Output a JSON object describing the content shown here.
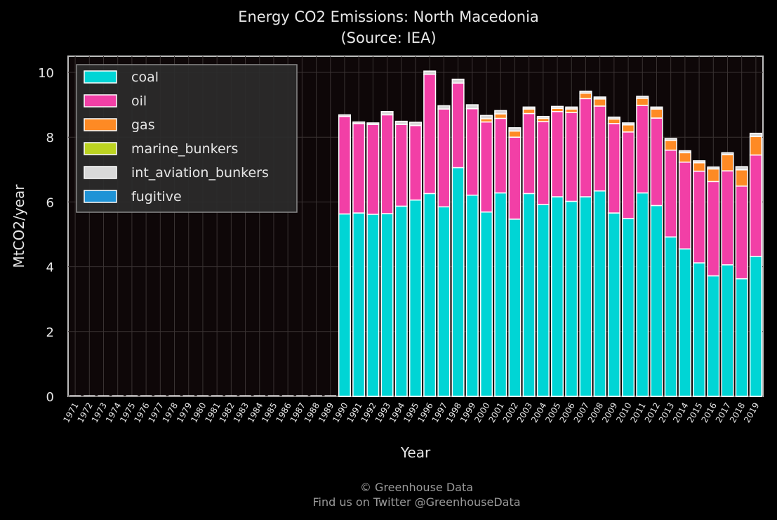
{
  "chart_data": {
    "type": "bar",
    "stacked": true,
    "title": "Energy CO2 Emissions: North Macedonia",
    "subtitle": "(Source: IEA)",
    "xlabel": "Year",
    "ylabel": "MtCO2/year",
    "ylim": [
      0,
      10.5
    ],
    "yticks": [
      0,
      2,
      4,
      6,
      8,
      10
    ],
    "grid": true,
    "legend_position": "top-left",
    "categories": [
      "1971",
      "1972",
      "1973",
      "1974",
      "1975",
      "1976",
      "1977",
      "1978",
      "1979",
      "1980",
      "1981",
      "1982",
      "1983",
      "1984",
      "1985",
      "1986",
      "1987",
      "1988",
      "1989",
      "1990",
      "1991",
      "1992",
      "1993",
      "1994",
      "1995",
      "1996",
      "1997",
      "1998",
      "1999",
      "2000",
      "2001",
      "2002",
      "2003",
      "2004",
      "2005",
      "2006",
      "2007",
      "2008",
      "2009",
      "2010",
      "2011",
      "2012",
      "2013",
      "2014",
      "2015",
      "2016",
      "2017",
      "2018",
      "2019"
    ],
    "series": [
      {
        "name": "coal",
        "color": "#00d5d5",
        "values": [
          0,
          0,
          0,
          0,
          0,
          0,
          0,
          0,
          0,
          0,
          0,
          0,
          0,
          0,
          0,
          0,
          0,
          0,
          0,
          5.63,
          5.66,
          5.62,
          5.64,
          5.87,
          6.06,
          6.26,
          5.85,
          7.06,
          6.21,
          5.69,
          6.28,
          5.47,
          6.26,
          5.92,
          6.16,
          6.02,
          6.16,
          6.34,
          5.66,
          5.49,
          6.28,
          5.89,
          4.92,
          4.55,
          4.12,
          3.72,
          4.06,
          3.63,
          4.32
        ]
      },
      {
        "name": "oil",
        "color": "#f23fa6",
        "values": [
          0,
          0,
          0,
          0,
          0,
          0,
          0,
          0,
          0,
          0,
          0,
          0,
          0,
          0,
          0,
          0,
          0,
          0,
          0,
          3.01,
          2.76,
          2.77,
          3.05,
          2.52,
          2.3,
          3.68,
          3.02,
          2.61,
          2.67,
          2.78,
          2.3,
          2.53,
          2.47,
          2.56,
          2.63,
          2.74,
          3.03,
          2.62,
          2.76,
          2.67,
          2.7,
          2.7,
          2.68,
          2.68,
          2.83,
          2.91,
          2.9,
          2.86,
          3.13
        ]
      },
      {
        "name": "gas",
        "color": "#fe8a24",
        "values": [
          0,
          0,
          0,
          0,
          0,
          0,
          0,
          0,
          0,
          0,
          0,
          0,
          0,
          0,
          0,
          0,
          0,
          0,
          0,
          0,
          0,
          0,
          0,
          0,
          0,
          0,
          0,
          0,
          0,
          0.1,
          0.14,
          0.19,
          0.14,
          0.1,
          0.1,
          0.11,
          0.17,
          0.22,
          0.14,
          0.22,
          0.22,
          0.28,
          0.3,
          0.29,
          0.26,
          0.39,
          0.5,
          0.5,
          0.57
        ]
      },
      {
        "name": "marine_bunkers",
        "color": "#bcd321",
        "values": [
          0,
          0,
          0,
          0,
          0,
          0,
          0,
          0,
          0,
          0,
          0,
          0,
          0,
          0,
          0,
          0,
          0,
          0,
          0,
          0,
          0,
          0,
          0,
          0,
          0,
          0,
          0,
          0,
          0,
          0,
          0,
          0,
          0,
          0,
          0,
          0,
          0,
          0,
          0,
          0,
          0,
          0,
          0,
          0,
          0,
          0,
          0,
          0,
          0
        ]
      },
      {
        "name": "int_aviation_bunkers",
        "color": "#d9d9d9",
        "values": [
          0,
          0,
          0,
          0,
          0,
          0,
          0,
          0,
          0,
          0,
          0,
          0,
          0,
          0,
          0,
          0,
          0,
          0,
          0,
          0.05,
          0.05,
          0.05,
          0.1,
          0.1,
          0.1,
          0.1,
          0.1,
          0.12,
          0.12,
          0.1,
          0.1,
          0.1,
          0.06,
          0.06,
          0.06,
          0.06,
          0.06,
          0.06,
          0.06,
          0.06,
          0.06,
          0.06,
          0.06,
          0.06,
          0.06,
          0.06,
          0.06,
          0.1,
          0.1
        ]
      },
      {
        "name": "fugitive",
        "color": "#1f93d6",
        "values": [
          0,
          0,
          0,
          0,
          0,
          0,
          0,
          0,
          0,
          0,
          0,
          0,
          0,
          0,
          0,
          0,
          0,
          0,
          0,
          0,
          0,
          0,
          0,
          0,
          0,
          0,
          0,
          0,
          0,
          0,
          0,
          0,
          0,
          0,
          0,
          0,
          0,
          0,
          0,
          0,
          0,
          0,
          0,
          0,
          0,
          0,
          0,
          0,
          0
        ]
      }
    ]
  },
  "credit": {
    "line1": "© Greenhouse Data",
    "line2": "Find us on Twitter @GreenhouseData"
  }
}
